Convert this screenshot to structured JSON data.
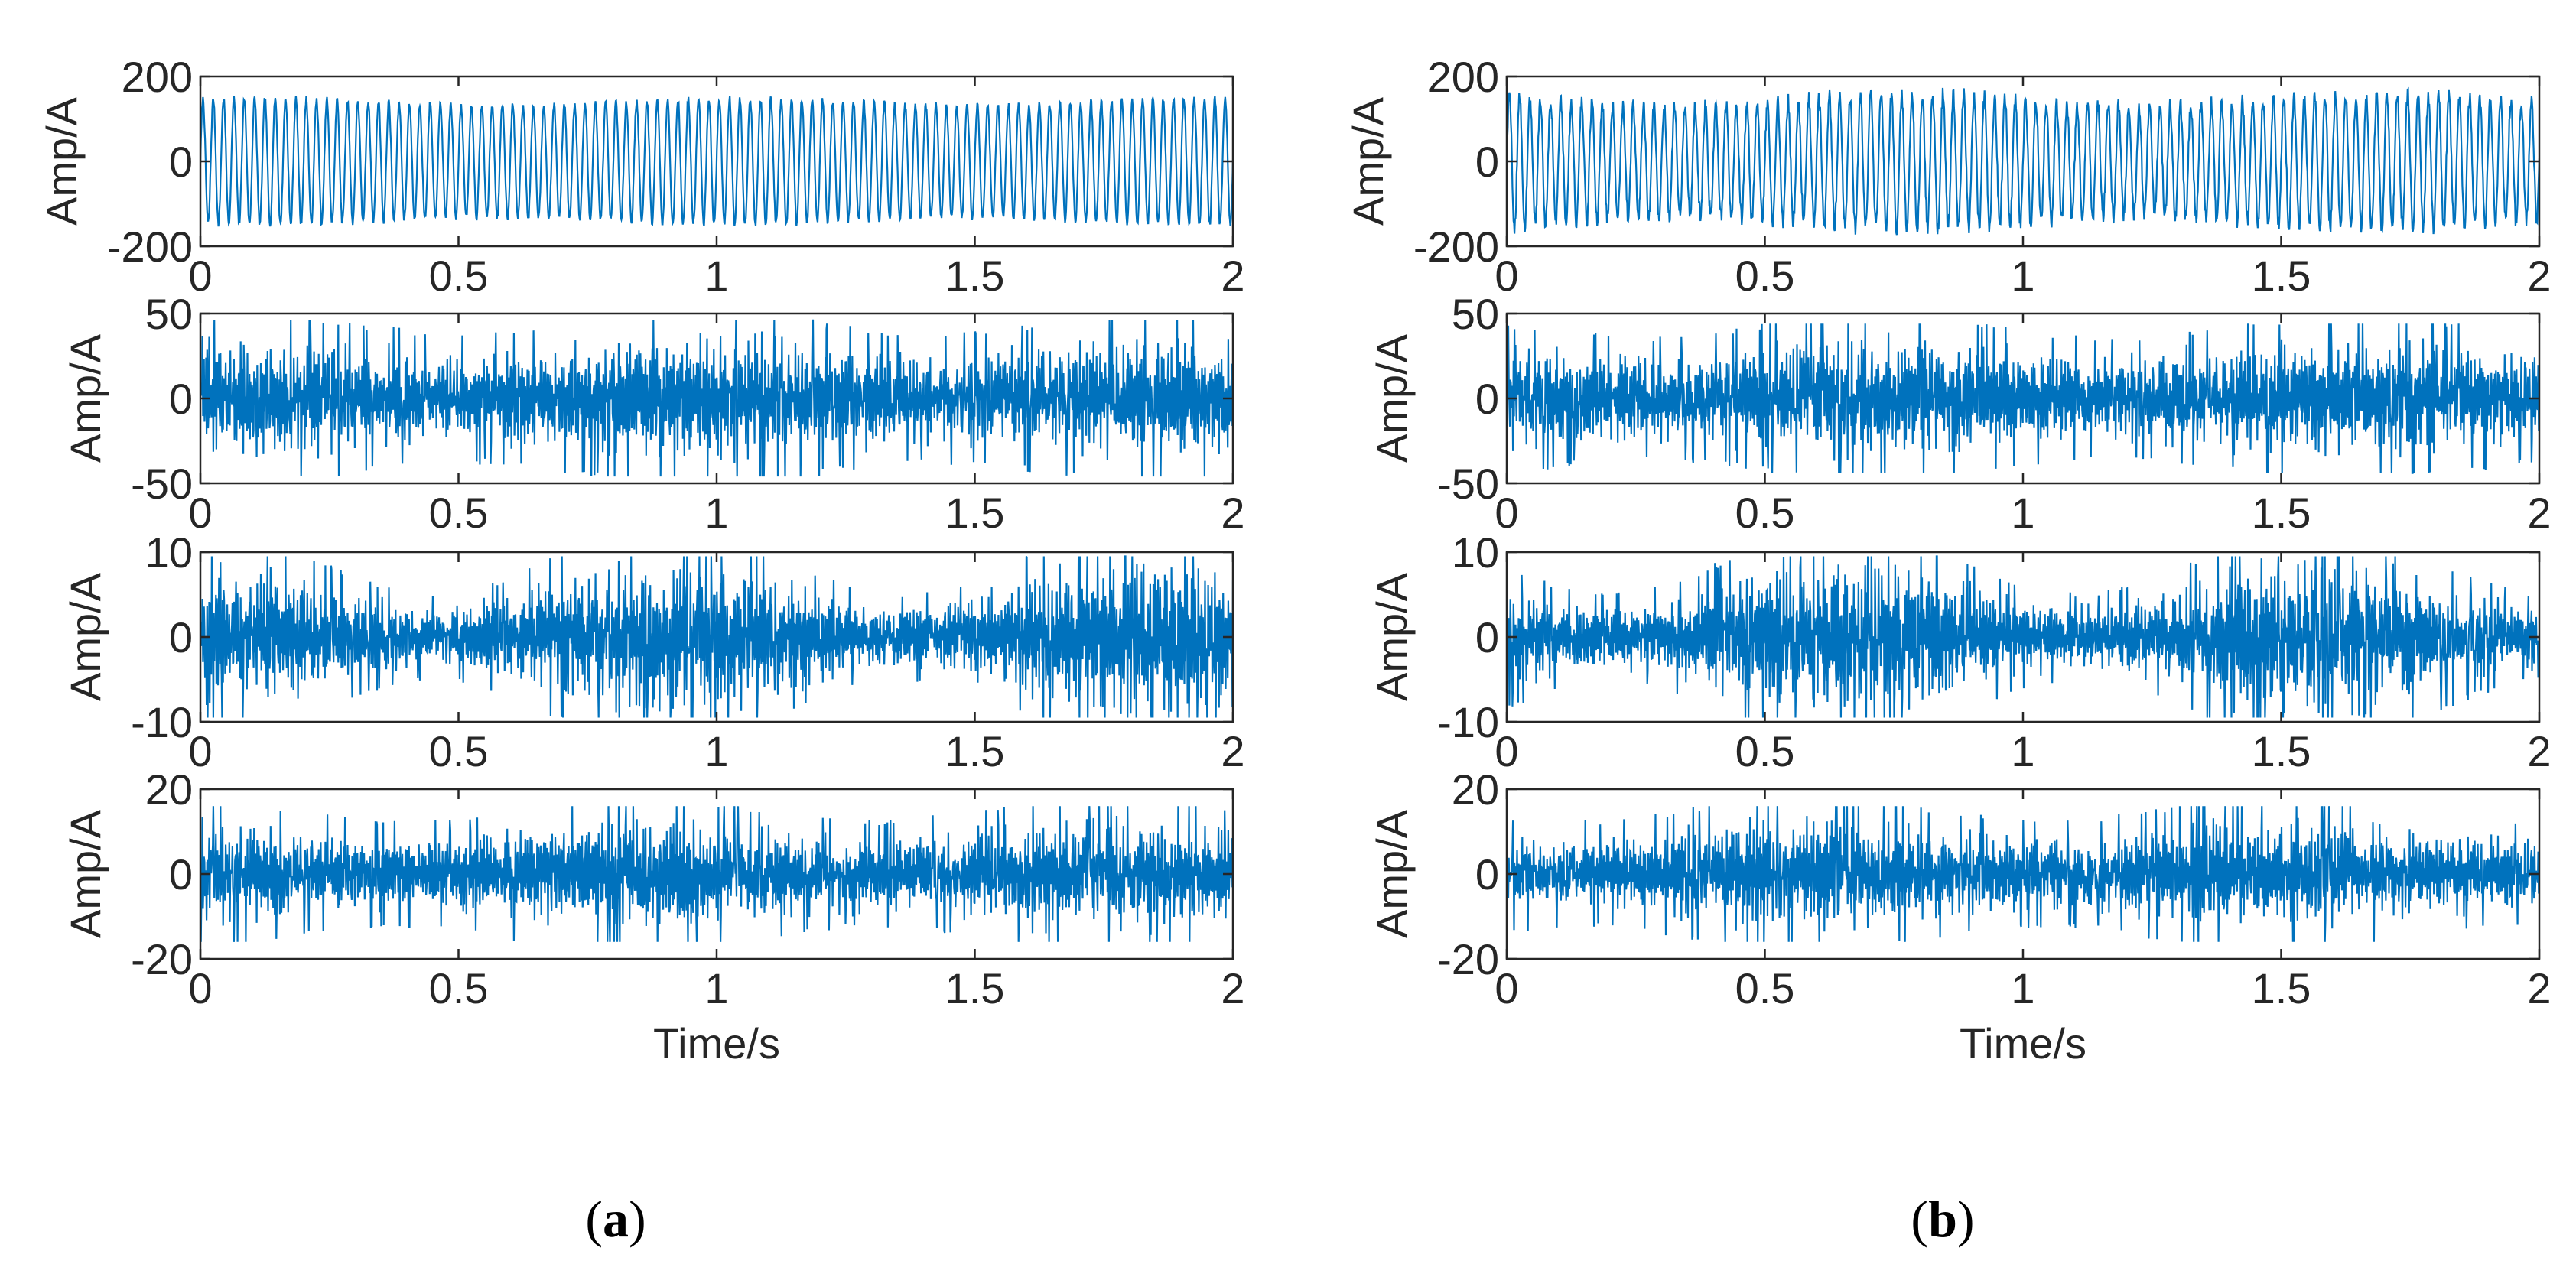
{
  "colors": {
    "line": "#0072BD",
    "axes": "#262626",
    "background": "#ffffff"
  },
  "panel_labels": [
    {
      "open": "(",
      "letter": "a",
      "close": ")"
    },
    {
      "open": "(",
      "letter": "b",
      "close": ")"
    }
  ],
  "chart_data": [
    {
      "type": "line",
      "panel": "a",
      "row": 1,
      "xlabel": "",
      "ylabel": "Amp/A",
      "xlim": [
        0,
        2
      ],
      "ylim": [
        -200,
        200
      ],
      "xticks": [
        0,
        0.5,
        1,
        1.5,
        2
      ],
      "yticks": [
        -200,
        0,
        200
      ],
      "xtick_labels": [
        "0",
        "0.5",
        "1",
        "1.5",
        "2"
      ],
      "ytick_labels": [
        "-200",
        "0",
        "200"
      ],
      "signal": {
        "kind": "periodic",
        "cycles": 100,
        "amplitude": 140,
        "envelope_variation": 0.06,
        "noise": 8
      }
    },
    {
      "type": "line",
      "panel": "a",
      "row": 2,
      "xlabel": "",
      "ylabel": "Amp/A",
      "xlim": [
        0,
        2
      ],
      "ylim": [
        -50,
        50
      ],
      "xticks": [
        0,
        0.5,
        1,
        1.5,
        2
      ],
      "yticks": [
        -50,
        0,
        50
      ],
      "xtick_labels": [
        "0",
        "0.5",
        "1",
        "1.5",
        "2"
      ],
      "ytick_labels": [
        "-50",
        "0",
        "50"
      ],
      "signal": {
        "kind": "noise-like",
        "amplitude": 26,
        "peak": 46,
        "envelope_variation": 0.15
      }
    },
    {
      "type": "line",
      "panel": "a",
      "row": 3,
      "xlabel": "",
      "ylabel": "Amp/A",
      "xlim": [
        0,
        2
      ],
      "ylim": [
        -10,
        10
      ],
      "xticks": [
        0,
        0.5,
        1,
        1.5,
        2
      ],
      "yticks": [
        -10,
        0,
        10
      ],
      "xtick_labels": [
        "0",
        "0.5",
        "1",
        "1.5",
        "2"
      ],
      "ytick_labels": [
        "-10",
        "0",
        "10"
      ],
      "signal": {
        "kind": "noise-like",
        "amplitude": 5.5,
        "peak": 9.5,
        "envelope_variation": 0.45
      }
    },
    {
      "type": "line",
      "panel": "a",
      "row": 4,
      "xlabel": "Time/s",
      "ylabel": "Amp/A",
      "xlim": [
        0,
        2
      ],
      "ylim": [
        -20,
        20
      ],
      "xticks": [
        0,
        0.5,
        1,
        1.5,
        2
      ],
      "yticks": [
        -20,
        0,
        20
      ],
      "xtick_labels": [
        "0",
        "0.5",
        "1",
        "1.5",
        "2"
      ],
      "ytick_labels": [
        "-20",
        "0",
        "20"
      ],
      "signal": {
        "kind": "noise-like",
        "amplitude": 9,
        "peak": 16,
        "envelope_variation": 0.2
      }
    },
    {
      "type": "line",
      "panel": "b",
      "row": 1,
      "xlabel": "",
      "ylabel": "Amp/A",
      "xlim": [
        0,
        2
      ],
      "ylim": [
        -200,
        200
      ],
      "xticks": [
        0,
        0.5,
        1,
        1.5,
        2
      ],
      "yticks": [
        -200,
        0,
        200
      ],
      "xtick_labels": [
        "0",
        "0.5",
        "1",
        "1.5",
        "2"
      ],
      "ytick_labels": [
        "-200",
        "0",
        "200"
      ],
      "signal": {
        "kind": "periodic",
        "cycles": 100,
        "amplitude": 145,
        "envelope_variation": 0.1,
        "noise": 18
      }
    },
    {
      "type": "line",
      "panel": "b",
      "row": 2,
      "xlabel": "",
      "ylabel": "Amp/A",
      "xlim": [
        0,
        2
      ],
      "ylim": [
        -50,
        50
      ],
      "xticks": [
        0,
        0.5,
        1,
        1.5,
        2
      ],
      "yticks": [
        -50,
        0,
        50
      ],
      "xtick_labels": [
        "0",
        "0.5",
        "1",
        "1.5",
        "2"
      ],
      "ytick_labels": [
        "-50",
        "0",
        "50"
      ],
      "signal": {
        "kind": "noise-like",
        "amplitude": 25,
        "peak": 44,
        "envelope_variation": 0.15
      }
    },
    {
      "type": "line",
      "panel": "b",
      "row": 3,
      "xlabel": "",
      "ylabel": "Amp/A",
      "xlim": [
        0,
        2
      ],
      "ylim": [
        -10,
        10
      ],
      "xticks": [
        0,
        0.5,
        1,
        1.5,
        2
      ],
      "yticks": [
        -10,
        0,
        10
      ],
      "xtick_labels": [
        "0",
        "0.5",
        "1",
        "1.5",
        "2"
      ],
      "ytick_labels": [
        "-10",
        "0",
        "10"
      ],
      "signal": {
        "kind": "noise-like",
        "amplitude": 5.5,
        "peak": 9.5,
        "envelope_variation": 0.45
      }
    },
    {
      "type": "line",
      "panel": "b",
      "row": 4,
      "xlabel": "Time/s",
      "ylabel": "Amp/A",
      "xlim": [
        0,
        2
      ],
      "ylim": [
        -20,
        20
      ],
      "xticks": [
        0,
        0.5,
        1,
        1.5,
        2
      ],
      "yticks": [
        -20,
        0,
        20
      ],
      "xtick_labels": [
        "0",
        "0.5",
        "1",
        "1.5",
        "2"
      ],
      "ytick_labels": [
        "-20",
        "0",
        "20"
      ],
      "signal": {
        "kind": "noise-like",
        "amplitude": 9,
        "peak": 16,
        "envelope_variation": 0.2
      }
    }
  ]
}
